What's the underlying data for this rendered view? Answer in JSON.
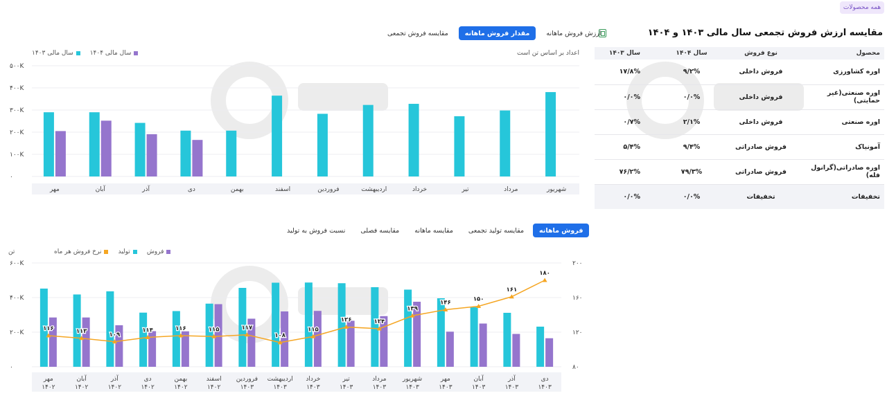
{
  "all_products_label": "همه محصولات",
  "table": {
    "title": "مقایسه ارزش فروش تجمعی سال مالی ۱۴۰۳ و ۱۴۰۴",
    "headers": {
      "product": "محصول",
      "sale_type": "نوع فروش",
      "y1404": "سال ۱۴۰۴",
      "y1403": "سال ۱۴۰۳"
    },
    "rows": [
      {
        "product": "اوره کشاورزی",
        "sale_type": "فروش داخلی",
        "y1404": "۹/۲%",
        "y1403": "۱۷/۸%"
      },
      {
        "product": "اوره صنعتی(غیر حمایتی)",
        "sale_type": "فروش داخلی",
        "y1404": "۰/۰%",
        "y1403": "۰/۰%"
      },
      {
        "product": "اوره صنعتی",
        "sale_type": "فروش داخلی",
        "y1404": "۲/۱%",
        "y1403": "۰/۷%"
      },
      {
        "product": "آمونیاک",
        "sale_type": "فروش صادراتی",
        "y1404": "۹/۴%",
        "y1403": "۵/۴%"
      },
      {
        "product": "اوره صادراتی(گرانول فله)",
        "sale_type": "فروش صادراتی",
        "y1404": "۷۹/۳%",
        "y1403": "۷۶/۲%"
      },
      {
        "product": "تخفیفات",
        "sale_type": "تخفیفات",
        "y1404": "۰/۰%",
        "y1403": "۰/۰%"
      }
    ]
  },
  "top_chart": {
    "tabs": [
      "ارزش فروش ماهانه",
      "مقدار فروش ماهانه",
      "مقایسه فروش تجمعی"
    ],
    "active_tab": 1,
    "unit_note": "اعداد بر اساس تن است",
    "legend": [
      {
        "name": "سال مالی ۱۴۰۴",
        "color": "#9575cd"
      },
      {
        "name": "سال مالی ۱۴۰۳",
        "color": "#26c6da"
      }
    ]
  },
  "bottom_chart": {
    "tabs": [
      "فروش ماهانه",
      "مقایسه تولید تجمعی",
      "مقایسه ماهانه",
      "مقایسه فصلی",
      "نسبت فروش به تولید"
    ],
    "active_tab": 0,
    "left_axis_unit": "تن",
    "legend": [
      {
        "name": "فروش",
        "color": "#9575cd"
      },
      {
        "name": "تولید",
        "color": "#26c6da"
      },
      {
        "name": "نرخ فروش هر ماه",
        "color": "#f5a623"
      }
    ]
  },
  "chart_data": [
    {
      "type": "bar",
      "categories": [
        "مهر",
        "آبان",
        "آذر",
        "دی",
        "بهمن",
        "اسفند",
        "فروردین",
        "اردیبهشت",
        "خرداد",
        "تیر",
        "مرداد",
        "شهریور"
      ],
      "y_ticks": [
        "۰",
        "۱۰۰K",
        "۲۰۰K",
        "۳۰۰K",
        "۴۰۰K",
        "۵۰۰K"
      ],
      "ylim": [
        0,
        500000
      ],
      "series": [
        {
          "name": "سال مالی ۱۴۰۳",
          "color": "#26c6da",
          "values": [
            290000,
            290000,
            242000,
            207000,
            207000,
            365000,
            283000,
            323000,
            328000,
            272000,
            298000,
            381000
          ]
        },
        {
          "name": "سال مالی ۱۴۰۴",
          "color": "#9575cd",
          "values": [
            205000,
            252000,
            191000,
            165000,
            null,
            null,
            null,
            null,
            null,
            null,
            null,
            null
          ]
        }
      ]
    },
    {
      "type": "bar",
      "categories": [
        [
          "مهر",
          "۱۴۰۲"
        ],
        [
          "آبان",
          "۱۴۰۲"
        ],
        [
          "آذر",
          "۱۴۰۲"
        ],
        [
          "دی",
          "۱۴۰۲"
        ],
        [
          "بهمن",
          "۱۴۰۲"
        ],
        [
          "اسفند",
          "۱۴۰۲"
        ],
        [
          "فروردین",
          "۱۴۰۳"
        ],
        [
          "اردیبهشت",
          "۱۴۰۳"
        ],
        [
          "خرداد",
          "۱۴۰۳"
        ],
        [
          "تیر",
          "۱۴۰۳"
        ],
        [
          "مرداد",
          "۱۴۰۳"
        ],
        [
          "شهریور",
          "۱۴۰۳"
        ],
        [
          "مهر",
          "۱۴۰۳"
        ],
        [
          "آبان",
          "۱۴۰۳"
        ],
        [
          "آذر",
          "۱۴۰۳"
        ],
        [
          "دی",
          "۱۴۰۳"
        ]
      ],
      "left_y_ticks": [
        "۰",
        "۲۰۰K",
        "۴۰۰K",
        "۶۰۰K"
      ],
      "left_ylim": [
        0,
        600000
      ],
      "right_y_ticks": [
        "۸۰",
        "۱۲۰",
        "۱۶۰",
        "۲۰۰"
      ],
      "right_ylim": [
        80,
        200
      ],
      "series": [
        {
          "name": "تولید",
          "color": "#26c6da",
          "values": [
            452000,
            418000,
            436000,
            313000,
            322000,
            365000,
            456000,
            486000,
            487000,
            483000,
            460000,
            446000,
            396000,
            345000,
            312000,
            232000
          ]
        },
        {
          "name": "فروش",
          "color": "#9575cd",
          "values": [
            285000,
            285000,
            240000,
            206000,
            205000,
            362000,
            278000,
            320000,
            323000,
            266000,
            293000,
            376000,
            203000,
            250000,
            190000,
            165000
          ]
        },
        {
          "name": "نرخ فروش هر ماه",
          "color": "#f5a623",
          "axis": "right",
          "values": [
            116,
            113,
            109,
            114,
            116,
            115,
            117,
            108,
            115,
            126,
            124,
            139,
            146,
            150,
            161,
            180
          ],
          "labels": [
            "۱۱۶",
            "۱۱۳",
            "۱۰۹",
            "۱۱۴",
            "۱۱۶",
            "۱۱۵",
            "۱۱۷",
            "۱۰۸",
            "۱۱۵",
            "۱۲۶",
            "۱۲۴",
            "۱۳۹",
            "۱۴۶",
            "۱۵۰",
            "۱۶۱",
            "۱۸۰"
          ]
        }
      ]
    }
  ]
}
